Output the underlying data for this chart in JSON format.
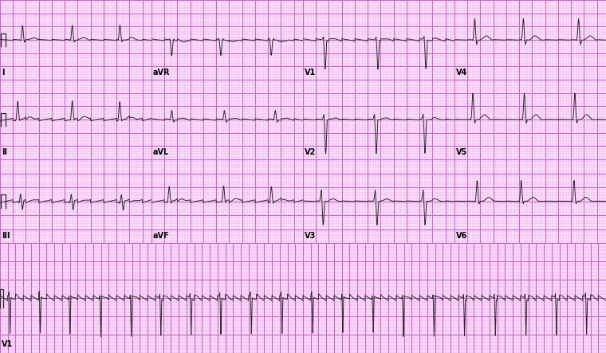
{
  "background_color": "#fce8fc",
  "grid_minor_color": "#e8a0e8",
  "grid_major_color": "#cc66cc",
  "ecg_color": "#2a2a2a",
  "fig_width": 7.6,
  "fig_height": 4.43,
  "dpi": 100,
  "leads_grid": [
    [
      "I",
      "aVR",
      "V1",
      "V4"
    ],
    [
      "II",
      "aVL",
      "V2",
      "V5"
    ],
    [
      "III",
      "aVF",
      "V3",
      "V6"
    ]
  ],
  "rhythm_lead": "V1",
  "label_fontsize": 7,
  "n_beats_panel": 3,
  "n_beats_rhythm": 20
}
